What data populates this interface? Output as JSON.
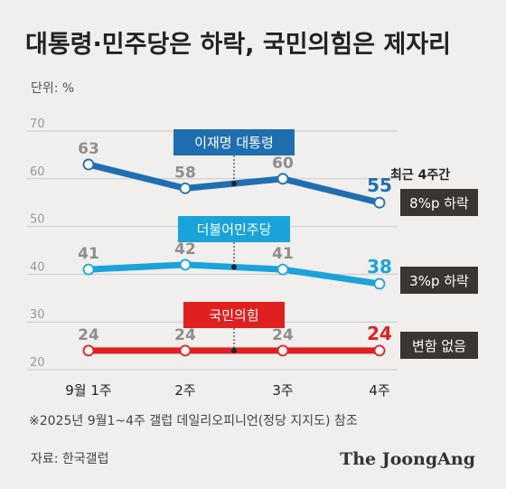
{
  "title": "대통령·민주당은 하락, 국민의힘은 제자리",
  "unit_label": "단위: %",
  "right_header": "최근 4주간",
  "footnote": "※2025년 9월1~4주 갤럽 데일리오피니언(정당 지지도) 참조",
  "source": "자료: 한국갤럽",
  "brand": "The JoongAng",
  "chart_data": {
    "type": "line",
    "categories": [
      "9월 1주",
      "2주",
      "3주",
      "4주"
    ],
    "ylim": [
      20,
      70
    ],
    "yticks": [
      20,
      30,
      40,
      50,
      60,
      70
    ],
    "grid": true,
    "series": [
      {
        "name": "이재명 대통령",
        "values": [
          63,
          58,
          60,
          55
        ],
        "color": "#1f6fb0",
        "change": "8%p 하락"
      },
      {
        "name": "더불어민주당",
        "values": [
          41,
          42,
          41,
          38
        ],
        "color": "#1aa3d9",
        "change": "3%p 하락"
      },
      {
        "name": "국민의힘",
        "values": [
          24,
          24,
          24,
          24
        ],
        "color": "#e02020",
        "change": "변함 없음"
      }
    ]
  }
}
